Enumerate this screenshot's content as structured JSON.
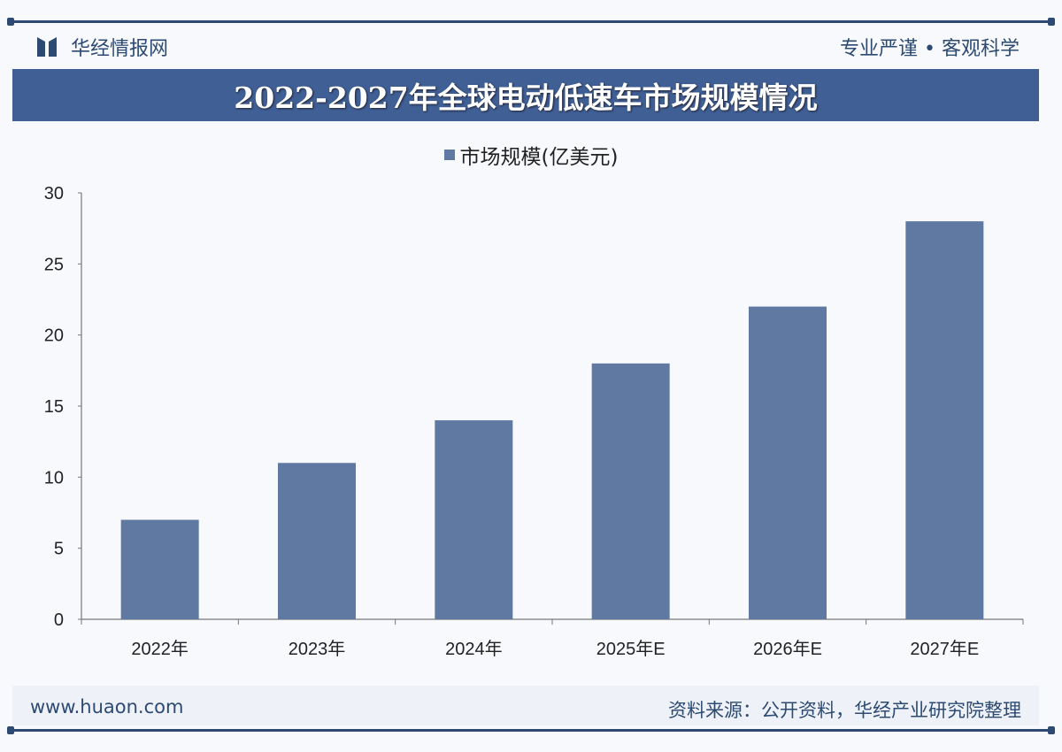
{
  "header": {
    "brand": "华经情报网",
    "motto": "专业严谨 • 客观科学",
    "brand_color": "#2d4a72"
  },
  "title": "2022-2027年全球电动低速车市场规模情况",
  "footer": {
    "url": "www.huaon.com",
    "source": "资料来源：公开资料，华经产业研究院整理"
  },
  "chart_data": {
    "type": "bar",
    "title": "2022-2027年全球电动低速车市场规模情况",
    "categories": [
      "2022年",
      "2023年",
      "2024年",
      "2025年E",
      "2026年E",
      "2027年E"
    ],
    "series": [
      {
        "name": "市场规模(亿美元)",
        "values": [
          7,
          11,
          14,
          18,
          22,
          28
        ],
        "color": "#5f79a3"
      }
    ],
    "ylim": [
      0,
      30
    ],
    "yticks": [
      0,
      5,
      10,
      15,
      20,
      25,
      30
    ],
    "grid": false,
    "legend": "top-center"
  }
}
